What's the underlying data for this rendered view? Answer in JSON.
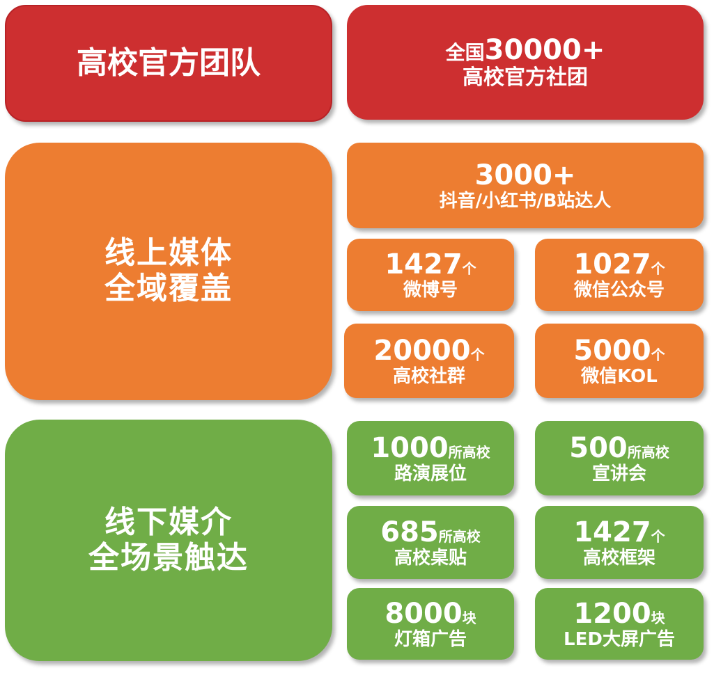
{
  "colors": {
    "red": "#CD2F30",
    "orange": "#ED7D31",
    "green": "#70AD47"
  },
  "team": {
    "title": "高校官方团队",
    "prefix": "全国",
    "number": "30000+",
    "label": "高校官方社团"
  },
  "online": {
    "title_line1": "线上媒体",
    "title_line2": "全域覆盖",
    "items": [
      {
        "number": "3000+",
        "unit": "",
        "label": "抖音/小红书/B站达人"
      },
      {
        "number": "1427",
        "unit": "个",
        "label": "微博号"
      },
      {
        "number": "1027",
        "unit": "个",
        "label": "微信公众号"
      },
      {
        "number": "20000",
        "unit": "个",
        "label": "高校社群"
      },
      {
        "number": "5000",
        "unit": "个",
        "label": "微信KOL"
      }
    ]
  },
  "offline": {
    "title_line1": "线下媒介",
    "title_line2": "全场景触达",
    "items": [
      {
        "number": "1000",
        "unit": "所高校",
        "label": "路演展位"
      },
      {
        "number": "500",
        "unit": "所高校",
        "label": "宣讲会"
      },
      {
        "number": "685",
        "unit": "所高校",
        "label": "高校桌贴"
      },
      {
        "number": "1427",
        "unit": "个",
        "label": "高校框架"
      },
      {
        "number": "8000",
        "unit": "块",
        "label": "灯箱广告"
      },
      {
        "number": "1200",
        "unit": "块",
        "label": "LED大屏广告"
      }
    ]
  }
}
